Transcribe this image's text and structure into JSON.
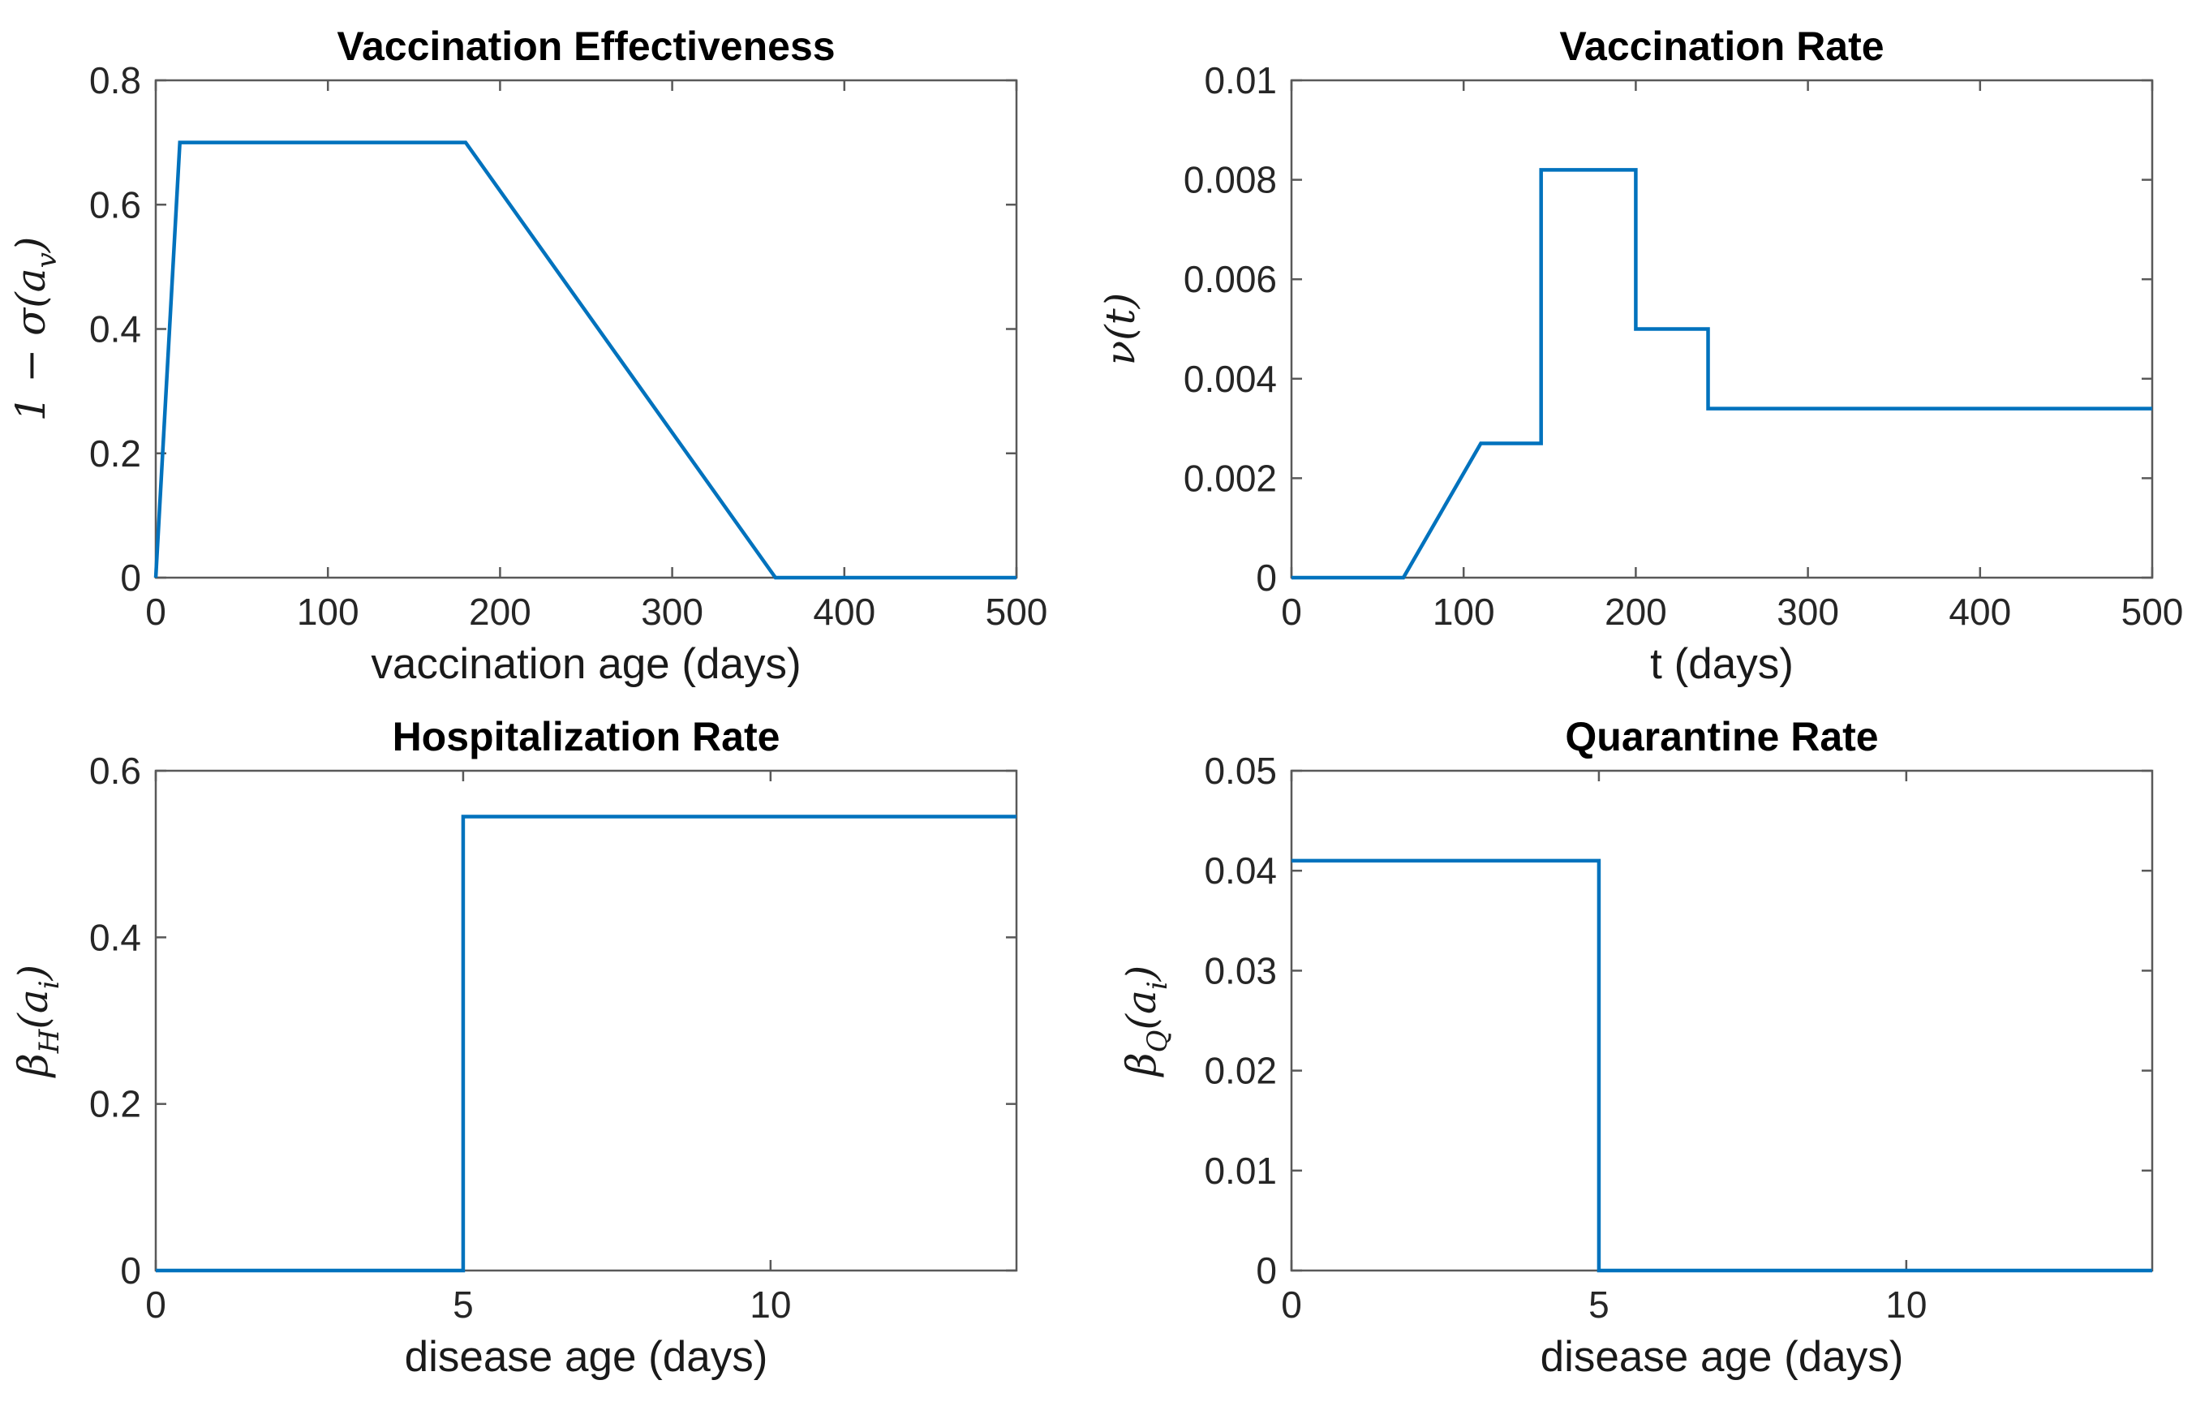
{
  "figure": {
    "background": "#ffffff",
    "axis_color": "#595959",
    "text_color": "#262626",
    "title_color": "#000000",
    "line_color": "#0072BD"
  },
  "chart_data": [
    {
      "type": "line",
      "title": "Vaccination Effectiveness",
      "xlabel": "vaccination age (days)",
      "ylabel": "1 − σ(a_v)",
      "xlim": [
        0,
        500
      ],
      "ylim": [
        0,
        0.8
      ],
      "xtick_labels": [
        "0",
        "100",
        "200",
        "300",
        "400",
        "500"
      ],
      "ytick_labels": [
        "0",
        "0.2",
        "0.4",
        "0.6",
        "0.8"
      ],
      "grid": false,
      "legend": null,
      "line_color": "#0072BD",
      "x": [
        0,
        14,
        180,
        360,
        500
      ],
      "y": [
        0,
        0.7,
        0.7,
        0,
        0
      ]
    },
    {
      "type": "line",
      "title": "Vaccination Rate",
      "xlabel": "t (days)",
      "ylabel": "ν(t)",
      "xlim": [
        0,
        500
      ],
      "ylim": [
        0,
        0.01
      ],
      "xtick_labels": [
        "0",
        "100",
        "200",
        "300",
        "400",
        "500"
      ],
      "ytick_labels": [
        "0",
        "0.002",
        "0.004",
        "0.006",
        "0.008",
        "0.01"
      ],
      "grid": false,
      "legend": null,
      "line_color": "#0072BD",
      "x": [
        0,
        65,
        110,
        145,
        145,
        200,
        200,
        242,
        242,
        500
      ],
      "y": [
        0,
        0,
        0.0027,
        0.0027,
        0.0082,
        0.0082,
        0.005,
        0.005,
        0.0034,
        0.0034
      ]
    },
    {
      "type": "line",
      "title": "Hospitalization Rate",
      "xlabel": "disease age (days)",
      "ylabel": "β_H(a_i)",
      "xlim": [
        0,
        14
      ],
      "ylim": [
        0,
        0.6
      ],
      "xtick_labels": [
        "0",
        "5",
        "10"
      ],
      "ytick_labels": [
        "0",
        "0.2",
        "0.4",
        "0.6"
      ],
      "grid": false,
      "legend": null,
      "line_color": "#0072BD",
      "x": [
        0,
        5,
        5,
        14
      ],
      "y": [
        0,
        0,
        0.545,
        0.545
      ]
    },
    {
      "type": "line",
      "title": "Quarantine Rate",
      "xlabel": "disease age (days)",
      "ylabel": "β_Q(a_i)",
      "xlim": [
        0,
        14
      ],
      "ylim": [
        0,
        0.05
      ],
      "xtick_labels": [
        "0",
        "5",
        "10"
      ],
      "ytick_labels": [
        "0",
        "0.01",
        "0.02",
        "0.03",
        "0.04",
        "0.05"
      ],
      "grid": false,
      "legend": null,
      "line_color": "#0072BD",
      "x": [
        0,
        5,
        5,
        14
      ],
      "y": [
        0.041,
        0.041,
        0,
        0
      ]
    }
  ]
}
